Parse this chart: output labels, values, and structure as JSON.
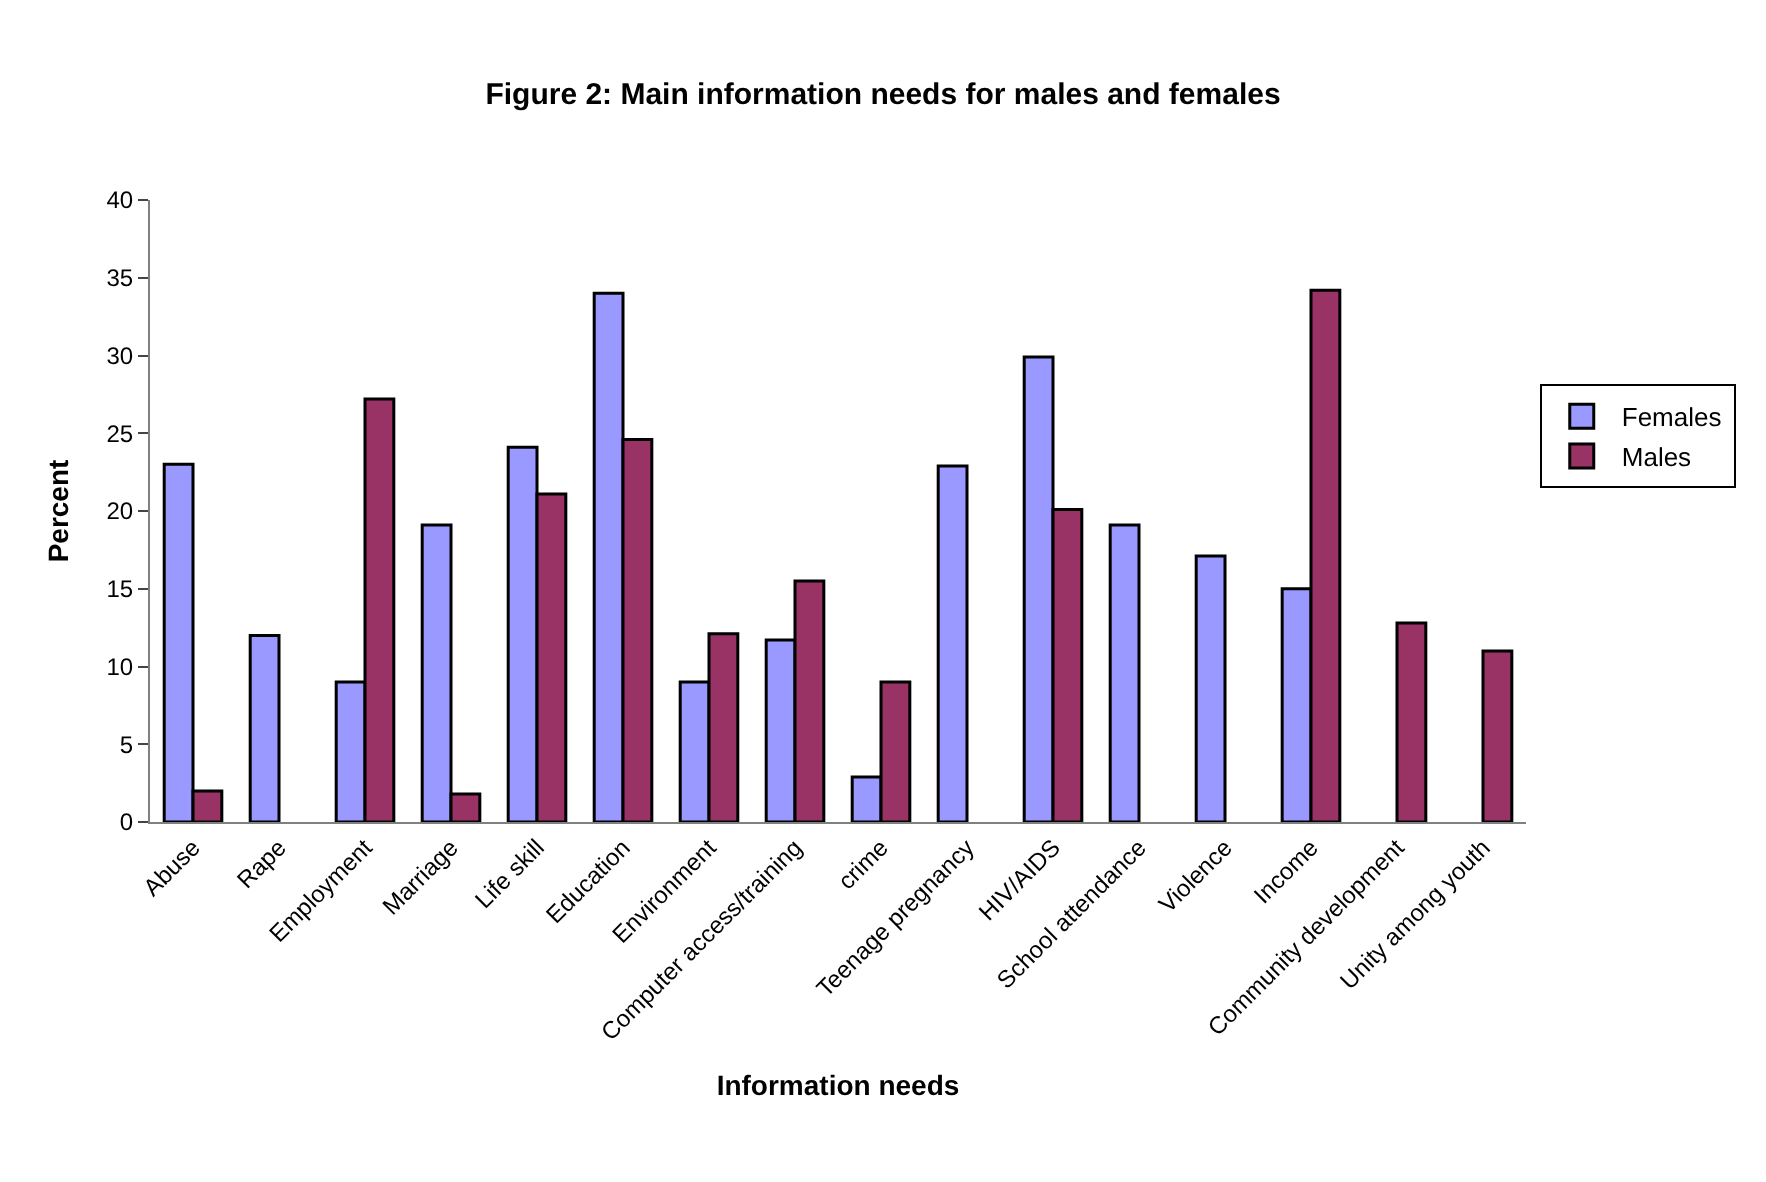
{
  "chart_data": {
    "type": "bar",
    "title": "Figure 2: Main information needs for males and females",
    "xlabel": "Information needs",
    "ylabel": "Percent",
    "categories": [
      "Abuse",
      "Rape",
      "Employment",
      "Marriage",
      "Life skill",
      "Education",
      "Environment",
      "Computer access/training",
      "crime",
      "Teenage pregnancy",
      "HIV/AIDS",
      "School attendance",
      "Violence",
      "Income",
      "Community development",
      "Unity among youth"
    ],
    "series": [
      {
        "name": "Females",
        "color": "#9999ff",
        "values": [
          23,
          12,
          9,
          19.1,
          24.1,
          34,
          9,
          11.7,
          2.9,
          22.9,
          29.9,
          19.1,
          17.1,
          15,
          null,
          null
        ]
      },
      {
        "name": "Males",
        "color": "#993366",
        "values": [
          2,
          null,
          27.2,
          1.8,
          21.1,
          24.6,
          12.1,
          15.5,
          9,
          null,
          20.1,
          null,
          null,
          34.2,
          12.8,
          11
        ]
      }
    ],
    "ylim": [
      0,
      40
    ],
    "yticks": [
      0,
      5,
      10,
      15,
      20,
      25,
      30,
      35,
      40
    ],
    "grid": false,
    "legend": "right"
  }
}
